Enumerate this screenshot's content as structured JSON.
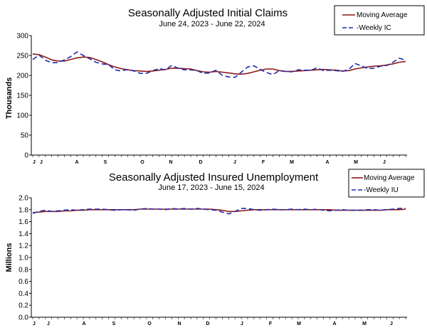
{
  "chart_data": [
    {
      "type": "line",
      "title": "Seasonally Adjusted Initial Claims",
      "subtitle": "June 24, 2023 - June 22, 2024",
      "ylabel": "Thousands",
      "ylim": [
        0,
        300
      ],
      "yticks": [
        "0",
        "50",
        "100",
        "150",
        "200",
        "250",
        "300"
      ],
      "months": [
        "J",
        "J",
        "A",
        "S",
        "O",
        "N",
        "D",
        "J",
        "F",
        "M",
        "A",
        "M",
        "J"
      ],
      "grid": false,
      "legend_position": "top-right",
      "series": [
        {
          "name": "Moving Average",
          "color": "#8b1a1a",
          "style": "solid",
          "values": [
            254,
            252,
            246,
            239,
            236,
            236,
            240,
            244,
            246,
            245,
            240,
            234,
            227,
            221,
            217,
            214,
            212,
            211,
            210,
            211,
            213,
            215,
            218,
            218,
            217,
            216,
            212,
            209,
            208,
            210,
            208,
            206,
            204,
            203,
            205,
            209,
            213,
            216,
            216,
            212,
            210,
            210,
            211,
            212,
            213,
            214,
            215,
            214,
            213,
            211,
            212,
            216,
            219,
            221,
            223,
            224,
            226,
            229,
            233,
            235
          ],
          "x": [
            0,
            1,
            2,
            3,
            4,
            5,
            6,
            7,
            8,
            9,
            10,
            11,
            12,
            13,
            14,
            15,
            16,
            17,
            18,
            19,
            20,
            21,
            22,
            23,
            24,
            25,
            26,
            27,
            28,
            29,
            30,
            31,
            32,
            33,
            34,
            35,
            36,
            37,
            38,
            39,
            40,
            41,
            42,
            43,
            44,
            45,
            46,
            47,
            48,
            49,
            50,
            51,
            52,
            53,
            54,
            55,
            56,
            57,
            58,
            59
          ]
        },
        {
          "name": "-Weekly IC",
          "color": "#1f2bb0",
          "style": "dashed",
          "values": [
            240,
            251,
            238,
            232,
            232,
            239,
            247,
            259,
            250,
            242,
            233,
            229,
            227,
            214,
            211,
            215,
            211,
            205,
            205,
            212,
            217,
            214,
            225,
            218,
            214,
            214,
            212,
            205,
            206,
            213,
            200,
            196,
            195,
            208,
            221,
            224,
            215,
            207,
            202,
            212,
            210,
            209,
            214,
            213,
            213,
            219,
            212,
            213,
            212,
            210,
            215,
            230,
            224,
            217,
            218,
            223,
            225,
            233,
            243,
            238
          ],
          "x": [
            0,
            1,
            2,
            3,
            4,
            5,
            6,
            7,
            8,
            9,
            10,
            11,
            12,
            13,
            14,
            15,
            16,
            17,
            18,
            19,
            20,
            21,
            22,
            23,
            24,
            25,
            26,
            27,
            28,
            29,
            30,
            31,
            32,
            33,
            34,
            35,
            36,
            37,
            38,
            39,
            40,
            41,
            42,
            43,
            44,
            45,
            46,
            47,
            48,
            49,
            50,
            51,
            52,
            53,
            54,
            55,
            56,
            57,
            58,
            59
          ]
        }
      ]
    },
    {
      "type": "line",
      "title": "Seasonally Adjusted Insured Unemployment",
      "subtitle": "June 17, 2023 - June 15, 2024",
      "ylabel": "Millions",
      "ylim": [
        0,
        2.0
      ],
      "yticks": [
        "0.0",
        "0.2",
        "0.4",
        "0.6",
        "0.8",
        "1.0",
        "1.2",
        "1.4",
        "1.6",
        "1.8",
        "2.0"
      ],
      "months": [
        "J",
        "J",
        "A",
        "S",
        "O",
        "N",
        "D",
        "J",
        "F",
        "M",
        "A",
        "M",
        "J"
      ],
      "grid": false,
      "legend_position": "top-right",
      "series": [
        {
          "name": "Moving Average",
          "color": "#8b1a1a",
          "style": "solid",
          "values": [
            1.75,
            1.76,
            1.77,
            1.77,
            1.77,
            1.78,
            1.78,
            1.79,
            1.79,
            1.8,
            1.8,
            1.8,
            1.8,
            1.8,
            1.8,
            1.8,
            1.8,
            1.81,
            1.81,
            1.81,
            1.81,
            1.81,
            1.81,
            1.81,
            1.81,
            1.81,
            1.81,
            1.81,
            1.81,
            1.8,
            1.79,
            1.77,
            1.77,
            1.78,
            1.79,
            1.8,
            1.8,
            1.8,
            1.8,
            1.8,
            1.8,
            1.8,
            1.8,
            1.8,
            1.8,
            1.8,
            1.8,
            1.8,
            1.79,
            1.79,
            1.79,
            1.79,
            1.79,
            1.79,
            1.79,
            1.79,
            1.8,
            1.8,
            1.8,
            1.81
          ],
          "x": [
            0,
            1,
            2,
            3,
            4,
            5,
            6,
            7,
            8,
            9,
            10,
            11,
            12,
            13,
            14,
            15,
            16,
            17,
            18,
            19,
            20,
            21,
            22,
            23,
            24,
            25,
            26,
            27,
            28,
            29,
            30,
            31,
            32,
            33,
            34,
            35,
            36,
            37,
            38,
            39,
            40,
            41,
            42,
            43,
            44,
            45,
            46,
            47,
            48,
            49,
            50,
            51,
            52,
            53,
            54,
            55,
            56,
            57,
            58,
            59
          ]
        },
        {
          "name": "-Weekly IU",
          "color": "#1f2bb0",
          "style": "dashed",
          "values": [
            1.74,
            1.77,
            1.79,
            1.77,
            1.78,
            1.79,
            1.8,
            1.79,
            1.8,
            1.81,
            1.81,
            1.81,
            1.8,
            1.79,
            1.8,
            1.8,
            1.79,
            1.81,
            1.82,
            1.81,
            1.81,
            1.8,
            1.82,
            1.81,
            1.82,
            1.81,
            1.82,
            1.81,
            1.8,
            1.79,
            1.76,
            1.73,
            1.77,
            1.82,
            1.82,
            1.8,
            1.79,
            1.8,
            1.81,
            1.8,
            1.8,
            1.81,
            1.8,
            1.81,
            1.8,
            1.81,
            1.79,
            1.78,
            1.79,
            1.8,
            1.79,
            1.79,
            1.79,
            1.8,
            1.8,
            1.79,
            1.8,
            1.81,
            1.82,
            1.82
          ],
          "x": [
            0,
            1,
            2,
            3,
            4,
            5,
            6,
            7,
            8,
            9,
            10,
            11,
            12,
            13,
            14,
            15,
            16,
            17,
            18,
            19,
            20,
            21,
            22,
            23,
            24,
            25,
            26,
            27,
            28,
            29,
            30,
            31,
            32,
            33,
            34,
            35,
            36,
            37,
            38,
            39,
            40,
            41,
            42,
            43,
            44,
            45,
            46,
            47,
            48,
            49,
            50,
            51,
            52,
            53,
            54,
            55,
            56,
            57,
            58,
            59
          ]
        }
      ]
    }
  ]
}
